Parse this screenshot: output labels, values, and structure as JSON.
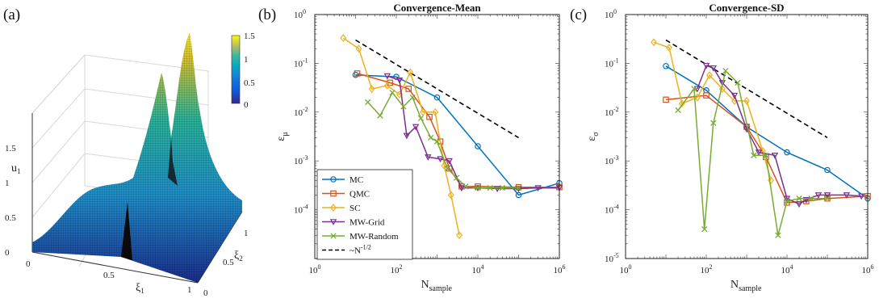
{
  "panels": {
    "a": "(a)",
    "b": "(b)",
    "c": "(c)"
  },
  "surface": {
    "zlabel": "u",
    "zlabel_sub": "1",
    "xlabel": "ξ",
    "xlabel_sub": "1",
    "ylabel": "ξ",
    "ylabel_sub": "2",
    "z_ticks": [
      "0",
      "0.5",
      "1",
      "1.5"
    ],
    "x_ticks": [
      "0",
      "0.5",
      "1"
    ],
    "y_ticks": [
      "0",
      "0.5",
      "1"
    ],
    "colorbar_ticks": [
      "0",
      "0.5",
      "1",
      "1.5"
    ]
  },
  "chart_data": [
    {
      "type": "line",
      "title": "Convergence-Mean",
      "xlabel": "N",
      "xlabel_sub": "sample",
      "ylabel": "ε",
      "ylabel_sub": "μ",
      "xscale": "log",
      "yscale": "log",
      "xlim": [
        1,
        1000000
      ],
      "ylim": [
        1e-05,
        1
      ],
      "x_ticks": [
        {
          "v": 1,
          "base": "10",
          "exp": "0"
        },
        {
          "v": 100,
          "base": "10",
          "exp": "2"
        },
        {
          "v": 10000,
          "base": "10",
          "exp": "4"
        },
        {
          "v": 1000000,
          "base": "10",
          "exp": "6"
        }
      ],
      "y_ticks": [
        {
          "v": 0.0001,
          "base": "10",
          "exp": "-4"
        },
        {
          "v": 0.001,
          "base": "10",
          "exp": "-3"
        },
        {
          "v": 0.01,
          "base": "10",
          "exp": "-2"
        },
        {
          "v": 0.1,
          "base": "10",
          "exp": "-1"
        },
        {
          "v": 1,
          "base": "10",
          "exp": "0"
        }
      ],
      "legend_position": "bottom-left",
      "series": [
        {
          "name": "MC",
          "color": "#0072BD",
          "marker": "circle",
          "x": [
            10,
            100,
            1000,
            10000,
            100000,
            1000000
          ],
          "y": [
            0.058,
            0.053,
            0.02,
            0.002,
            0.0002,
            0.00035
          ]
        },
        {
          "name": "QMC",
          "color": "#D95319",
          "marker": "square",
          "x": [
            11,
            70,
            200,
            650,
            1200,
            2000,
            4000,
            10000,
            100000,
            1000000
          ],
          "y": [
            0.062,
            0.04,
            0.03,
            0.008,
            0.0025,
            0.0007,
            0.0003,
            0.0003,
            0.00029,
            0.00029
          ]
        },
        {
          "name": "SC",
          "color": "#EDB120",
          "marker": "diamond",
          "x": [
            5,
            12,
            25,
            60,
            120,
            220,
            450,
            900,
            1500,
            2200,
            3500
          ],
          "y": [
            0.33,
            0.2,
            0.03,
            0.035,
            0.023,
            0.065,
            0.01,
            0.01,
            0.0008,
            0.0002,
            3e-05
          ]
        },
        {
          "name": "MW-Grid",
          "color": "#7E2F8E",
          "marker": "triangle-down",
          "x": [
            60,
            120,
            180,
            300,
            600,
            1200,
            2000,
            4000,
            10000,
            30000,
            100000,
            300000,
            1000000
          ],
          "y": [
            0.055,
            0.045,
            0.0033,
            0.005,
            0.0012,
            0.0011,
            0.001,
            0.00028,
            0.00028,
            0.00027,
            0.00027,
            0.00028,
            0.00028
          ]
        },
        {
          "name": "MW-Random",
          "color": "#77AC30",
          "marker": "x",
          "x": [
            20,
            40,
            80,
            150,
            250,
            400,
            700,
            1000,
            1800,
            3000,
            5000,
            10000,
            20000,
            40000,
            100000
          ],
          "y": [
            0.016,
            0.0085,
            0.025,
            0.013,
            0.02,
            0.0075,
            0.003,
            0.0025,
            0.0007,
            0.00045,
            0.0003,
            0.00028,
            0.00028,
            0.00028,
            0.00028
          ]
        }
      ],
      "reference": {
        "name": "~N",
        "name_sup": "-1/2",
        "style": "dashed",
        "color": "#000000",
        "x": [
          10,
          100000
        ],
        "y": [
          0.3,
          0.003
        ]
      }
    },
    {
      "type": "line",
      "title": "Convergence-SD",
      "xlabel": "N",
      "xlabel_sub": "sample",
      "ylabel": "ε",
      "ylabel_sub": "σ",
      "xscale": "log",
      "yscale": "log",
      "xlim": [
        1,
        1000000
      ],
      "ylim": [
        1e-05,
        1
      ],
      "x_ticks": [
        {
          "v": 1,
          "base": "10",
          "exp": "0"
        },
        {
          "v": 100,
          "base": "10",
          "exp": "2"
        },
        {
          "v": 10000,
          "base": "10",
          "exp": "4"
        },
        {
          "v": 1000000,
          "base": "10",
          "exp": "6"
        }
      ],
      "y_ticks": [
        {
          "v": 1e-05,
          "base": "10",
          "exp": "-5"
        },
        {
          "v": 0.0001,
          "base": "10",
          "exp": "-4"
        },
        {
          "v": 0.001,
          "base": "10",
          "exp": "-3"
        },
        {
          "v": 0.01,
          "base": "10",
          "exp": "-2"
        },
        {
          "v": 0.1,
          "base": "10",
          "exp": "-1"
        },
        {
          "v": 1,
          "base": "10",
          "exp": "0"
        }
      ],
      "series": [
        {
          "name": "MC",
          "color": "#0072BD",
          "marker": "circle",
          "x": [
            10,
            100,
            1000,
            10000,
            100000,
            1000000
          ],
          "y": [
            0.088,
            0.028,
            0.005,
            0.0015,
            0.00065,
            0.00017
          ]
        },
        {
          "name": "QMC",
          "color": "#D95319",
          "marker": "square",
          "x": [
            10,
            100,
            1000,
            3000,
            10000,
            30000,
            100000,
            1000000
          ],
          "y": [
            0.018,
            0.022,
            0.005,
            0.0012,
            0.00014,
            0.00015,
            0.00017,
            0.00019
          ]
        },
        {
          "name": "SC",
          "color": "#EDB120",
          "marker": "diamond",
          "x": [
            5,
            12,
            25,
            60,
            120,
            250,
            500,
            1000,
            2500,
            4000
          ],
          "y": [
            0.27,
            0.21,
            0.015,
            0.02,
            0.057,
            0.03,
            0.017,
            0.017,
            0.0016,
            0.0004
          ]
        },
        {
          "name": "MW-Grid",
          "color": "#7E2F8E",
          "marker": "triangle-down",
          "x": [
            60,
            100,
            150,
            250,
            500,
            1000,
            2000,
            5000,
            10000,
            20000,
            30000,
            60000,
            100000,
            300000,
            700000
          ],
          "y": [
            0.03,
            0.09,
            0.08,
            0.04,
            0.022,
            0.0045,
            0.0015,
            0.0013,
            0.00017,
            0.00013,
            0.00016,
            0.0002,
            0.0002,
            0.0002,
            0.00019
          ]
        },
        {
          "name": "MW-Random",
          "color": "#77AC30",
          "marker": "x",
          "x": [
            20,
            50,
            90,
            150,
            300,
            600,
            1500,
            3000,
            6000,
            10000,
            20000,
            40000,
            100000
          ],
          "y": [
            0.011,
            0.03,
            4e-05,
            0.006,
            0.07,
            0.04,
            0.0013,
            0.0013,
            3e-05,
            0.00015,
            0.00017,
            0.00017,
            0.00017
          ]
        }
      ],
      "reference": {
        "name": "~N",
        "name_sup": "-1/2",
        "style": "dashed",
        "color": "#000000",
        "x": [
          10,
          100000
        ],
        "y": [
          0.3,
          0.003
        ]
      }
    }
  ]
}
